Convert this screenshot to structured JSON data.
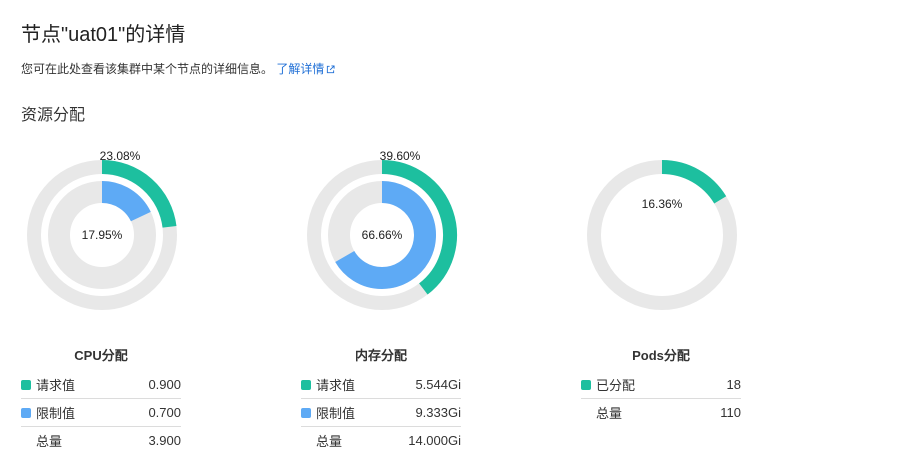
{
  "page": {
    "title": "节点\"uat01\"的详情",
    "description": "您可在此处查看该集群中某个节点的详细信息。",
    "learn_more": "了解详情",
    "section_title": "资源分配"
  },
  "colors": {
    "requested": "#1dbf9f",
    "limit": "#5eaaf5",
    "track": "#e8e8e8"
  },
  "charts": {
    "cpu": {
      "title": "CPU分配",
      "outer_pct_label": "23.08%",
      "outer_fraction": 0.2308,
      "inner_pct_label": "17.95%",
      "inner_fraction": 0.1795,
      "rows": [
        {
          "label": "请求值",
          "value": "0.900"
        },
        {
          "label": "限制值",
          "value": "0.700"
        },
        {
          "label": "总量",
          "value": "3.900"
        }
      ]
    },
    "memory": {
      "title": "内存分配",
      "outer_pct_label": "39.60%",
      "outer_fraction": 0.396,
      "inner_pct_label": "66.66%",
      "inner_fraction": 0.6666,
      "rows": [
        {
          "label": "请求值",
          "value": "5.544Gi"
        },
        {
          "label": "限制值",
          "value": "9.333Gi"
        },
        {
          "label": "总量",
          "value": "14.000Gi"
        }
      ]
    },
    "pods": {
      "title": "Pods分配",
      "outer_pct_label": "16.36%",
      "outer_fraction": 0.1636,
      "rows": [
        {
          "label": "已分配",
          "value": "18"
        },
        {
          "label": "总量",
          "value": "110"
        }
      ]
    }
  }
}
